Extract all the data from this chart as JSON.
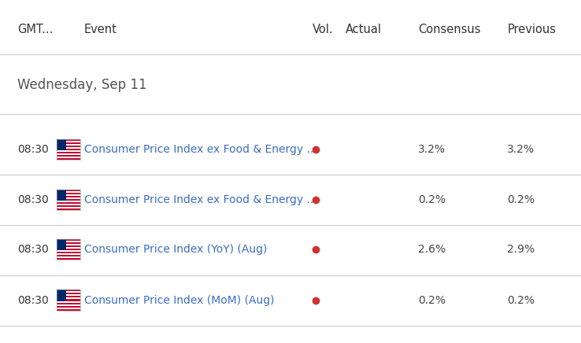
{
  "bg_color": "#ffffff",
  "header": {
    "gmt": "GMT...",
    "event": "Event",
    "vol": "Vol.",
    "actual": "Actual",
    "consensus": "Consensus",
    "previous": "Previous"
  },
  "section_date": "Wednesday, Sep 11",
  "rows": [
    {
      "time": "08:30",
      "event": "Consumer Price Index ex Food & Energy ...",
      "vol_dot": true,
      "actual": "",
      "consensus": "3.2%",
      "previous": "3.2%"
    },
    {
      "time": "08:30",
      "event": "Consumer Price Index ex Food & Energy ...",
      "vol_dot": true,
      "actual": "",
      "consensus": "0.2%",
      "previous": "0.2%"
    },
    {
      "time": "08:30",
      "event": "Consumer Price Index (YoY) (Aug)",
      "vol_dot": true,
      "actual": "",
      "consensus": "2.6%",
      "previous": "2.9%"
    },
    {
      "time": "08:30",
      "event": "Consumer Price Index (MoM) (Aug)",
      "vol_dot": true,
      "actual": "",
      "consensus": "0.2%",
      "previous": "0.2%"
    }
  ],
  "col_x": {
    "gmt": 0.03,
    "flag": 0.098,
    "event": 0.145,
    "vol_dot": 0.538,
    "actual": 0.595,
    "consensus": 0.72,
    "previous": 0.873
  },
  "header_color": "#333333",
  "time_color": "#333333",
  "event_color": "#3b6ec4",
  "data_color": "#444444",
  "date_color": "#555555",
  "dot_color": "#cc3333",
  "separator_color": "#cccccc",
  "header_fontsize": 10.5,
  "date_fontsize": 12,
  "row_fontsize": 10,
  "time_fontsize": 10
}
